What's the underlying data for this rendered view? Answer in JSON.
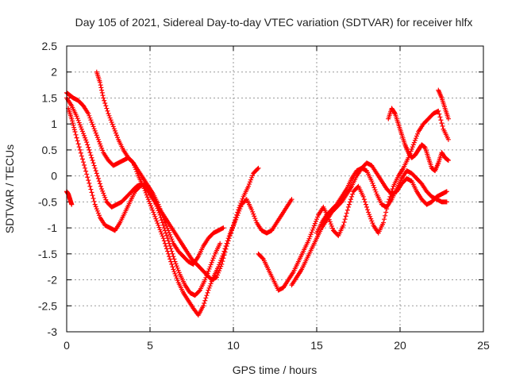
{
  "chart_data": {
    "type": "scatter",
    "title": "Day 105 of 2021, Sidereal Day-to-day VTEC variation (SDTVAR) for receiver hlfx",
    "xlabel": "GPS time / hours",
    "ylabel": "SDTVAR / TECUs",
    "xlim": [
      0,
      25
    ],
    "ylim": [
      -3,
      2.5
    ],
    "xticks": [
      "0",
      "5",
      "10",
      "15",
      "20",
      "25"
    ],
    "yticks": [
      "-3",
      "-2.5",
      "-2",
      "-1.5",
      "-1",
      "-0.5",
      "0",
      "0.5",
      "1",
      "1.5",
      "2",
      "2.5"
    ],
    "grid": true,
    "marker": "plus",
    "color": "#ff0000",
    "series": [
      {
        "x": [
          0.0,
          0.2,
          0.4,
          0.7,
          1.0,
          1.3,
          1.6,
          1.9,
          2.2,
          2.5,
          2.8,
          3.1,
          3.4,
          3.7,
          4.0,
          4.3,
          4.6,
          4.9,
          5.2,
          5.5,
          5.8,
          6.1,
          6.4,
          6.7,
          7.0,
          7.3,
          7.6,
          7.9,
          8.2,
          8.5,
          8.8,
          9.1,
          9.4,
          9.7,
          10.0,
          10.3,
          10.6,
          10.9,
          11.2,
          11.5
        ],
        "y": [
          1.6,
          1.55,
          1.5,
          1.45,
          1.35,
          1.2,
          0.95,
          0.7,
          0.45,
          0.3,
          0.2,
          0.25,
          0.3,
          0.35,
          0.25,
          0.0,
          -0.2,
          -0.45,
          -0.7,
          -0.95,
          -1.2,
          -1.5,
          -1.8,
          -2.05,
          -2.25,
          -2.4,
          -2.55,
          -2.68,
          -2.5,
          -2.2,
          -1.95,
          -1.75,
          -1.5,
          -1.2,
          -0.95,
          -0.65,
          -0.4,
          -0.2,
          0.05,
          0.15
        ]
      },
      {
        "x": [
          0.0,
          0.3,
          0.6,
          0.9,
          1.2,
          1.5,
          1.8,
          2.1,
          2.4,
          2.7,
          3.0,
          3.3,
          3.6,
          3.9,
          4.2,
          4.5,
          4.8,
          5.1,
          5.4,
          5.7,
          6.0,
          6.3,
          6.6,
          6.9,
          7.2,
          7.5,
          7.8,
          8.1,
          8.4,
          8.7,
          9.0,
          9.3,
          9.6,
          9.9,
          10.2,
          10.5,
          10.8,
          11.1,
          11.4,
          11.7,
          12.0,
          12.3,
          12.6,
          12.9,
          13.2,
          13.5
        ],
        "y": [
          1.5,
          1.35,
          1.15,
          0.9,
          0.65,
          0.35,
          0.05,
          -0.25,
          -0.5,
          -0.6,
          -0.55,
          -0.5,
          -0.4,
          -0.3,
          -0.2,
          -0.15,
          -0.25,
          -0.4,
          -0.55,
          -0.7,
          -0.85,
          -1.0,
          -1.15,
          -1.3,
          -1.45,
          -1.6,
          -1.7,
          -1.8,
          -1.9,
          -2.0,
          -1.95,
          -1.7,
          -1.35,
          -1.05,
          -0.8,
          -0.55,
          -0.45,
          -0.65,
          -0.9,
          -1.05,
          -1.1,
          -1.05,
          -0.9,
          -0.75,
          -0.6,
          -0.45
        ]
      },
      {
        "x": [
          1.8,
          2.0,
          2.2,
          2.5,
          2.8,
          3.1,
          3.4,
          3.7,
          4.0,
          4.3,
          4.6,
          4.9,
          5.2,
          5.5,
          5.8,
          6.1,
          6.4,
          6.7,
          7.0,
          7.3,
          7.6,
          7.9,
          8.2,
          8.5,
          8.8,
          9.1,
          9.4
        ],
        "y": [
          2.0,
          1.8,
          1.5,
          1.2,
          0.95,
          0.7,
          0.5,
          0.35,
          0.25,
          0.1,
          -0.05,
          -0.2,
          -0.35,
          -0.55,
          -0.8,
          -1.05,
          -1.3,
          -1.45,
          -1.55,
          -1.65,
          -1.7,
          -1.55,
          -1.35,
          -1.2,
          -1.1,
          -1.05,
          -1.0
        ]
      },
      {
        "x": [
          0.1,
          0.3,
          0.5,
          0.8,
          1.1,
          1.4,
          1.7,
          2.0,
          2.3,
          2.6,
          2.9,
          3.2,
          3.5,
          3.8,
          4.1,
          4.4,
          4.7,
          5.0,
          5.3,
          5.6,
          5.9,
          6.2,
          6.5,
          6.8,
          7.1,
          7.4,
          7.7,
          8.0,
          8.3,
          8.6,
          8.9,
          9.2
        ],
        "y": [
          1.3,
          1.1,
          0.85,
          0.5,
          0.15,
          -0.2,
          -0.55,
          -0.8,
          -0.95,
          -1.0,
          -1.05,
          -0.9,
          -0.7,
          -0.5,
          -0.3,
          -0.2,
          -0.15,
          -0.3,
          -0.5,
          -0.75,
          -1.05,
          -1.35,
          -1.65,
          -1.9,
          -2.1,
          -2.25,
          -2.3,
          -2.2,
          -2.0,
          -1.75,
          -1.5,
          -1.3
        ]
      },
      {
        "x": [
          0.0,
          0.1,
          0.2,
          0.3
        ],
        "y": [
          -0.3,
          -0.35,
          -0.45,
          -0.55
        ]
      },
      {
        "x": [
          11.5,
          11.8,
          12.1,
          12.4,
          12.7,
          13.0,
          13.3,
          13.6,
          13.9,
          14.2,
          14.5,
          14.8,
          15.1,
          15.4,
          15.7,
          16.0,
          16.3,
          16.6,
          16.9,
          17.2,
          17.5,
          17.8,
          18.1,
          18.4,
          18.7,
          19.0,
          19.3,
          19.6,
          19.9,
          20.2,
          20.5,
          20.8,
          21.1,
          21.4,
          21.7,
          22.0,
          22.3,
          22.6,
          22.9
        ],
        "y": [
          -1.5,
          -1.6,
          -1.8,
          -2.0,
          -2.2,
          -2.15,
          -2.0,
          -1.85,
          -1.65,
          -1.45,
          -1.25,
          -1.0,
          -0.75,
          -0.6,
          -0.8,
          -1.05,
          -1.15,
          -0.95,
          -0.6,
          -0.3,
          -0.2,
          -0.4,
          -0.7,
          -0.95,
          -1.1,
          -0.9,
          -0.5,
          -0.2,
          0.0,
          0.15,
          0.35,
          0.6,
          0.85,
          1.0,
          1.1,
          1.2,
          1.25,
          0.9,
          0.7
        ]
      },
      {
        "x": [
          13.5,
          13.8,
          14.1,
          14.4,
          14.7,
          15.0,
          15.3,
          15.6,
          15.9,
          16.2,
          16.5,
          16.8,
          17.1,
          17.4,
          17.7,
          18.0,
          18.3,
          18.6,
          18.9,
          19.2,
          19.5,
          19.8,
          20.1,
          20.4,
          20.7,
          21.0,
          21.3,
          21.6,
          21.9,
          22.2,
          22.5,
          22.8
        ],
        "y": [
          -2.1,
          -1.95,
          -1.8,
          -1.6,
          -1.4,
          -1.2,
          -1.0,
          -0.85,
          -0.7,
          -0.6,
          -0.5,
          -0.35,
          -0.2,
          0.0,
          0.15,
          0.25,
          0.2,
          0.05,
          -0.1,
          -0.25,
          -0.35,
          -0.3,
          -0.15,
          -0.05,
          -0.1,
          -0.3,
          -0.45,
          -0.55,
          -0.5,
          -0.4,
          -0.35,
          -0.3
        ]
      },
      {
        "x": [
          15.0,
          15.3,
          15.6,
          15.9,
          16.2,
          16.5,
          16.8,
          17.1,
          17.4,
          17.7,
          18.0,
          18.3,
          18.6,
          18.9,
          19.2,
          19.5,
          19.8,
          20.1,
          20.4,
          20.7,
          21.0,
          21.3,
          21.6,
          21.9,
          22.2,
          22.5,
          22.8
        ],
        "y": [
          -1.1,
          -0.9,
          -0.75,
          -0.65,
          -0.55,
          -0.4,
          -0.25,
          -0.05,
          0.1,
          0.15,
          0.1,
          -0.1,
          -0.35,
          -0.55,
          -0.6,
          -0.45,
          -0.25,
          -0.05,
          0.1,
          0.05,
          -0.05,
          -0.15,
          -0.3,
          -0.4,
          -0.45,
          -0.5,
          -0.5
        ]
      },
      {
        "x": [
          19.3,
          19.5,
          19.7,
          19.9,
          20.1,
          20.3,
          20.5,
          20.7,
          20.9,
          21.1,
          21.3,
          21.5,
          21.7,
          21.9,
          22.1,
          22.3,
          22.5,
          22.7,
          22.9
        ],
        "y": [
          1.1,
          1.3,
          1.2,
          1.0,
          0.8,
          0.6,
          0.45,
          0.35,
          0.4,
          0.5,
          0.6,
          0.55,
          0.35,
          0.15,
          0.1,
          0.25,
          0.45,
          0.35,
          0.3
        ]
      },
      {
        "x": [
          22.3,
          22.5,
          22.7,
          22.9
        ],
        "y": [
          1.65,
          1.5,
          1.3,
          1.1
        ]
      }
    ]
  }
}
